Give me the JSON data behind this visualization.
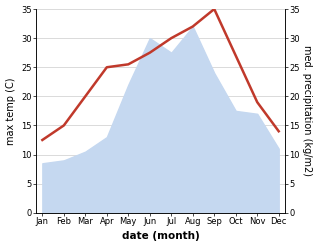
{
  "months": [
    "Jan",
    "Feb",
    "Mar",
    "Apr",
    "May",
    "Jun",
    "Jul",
    "Aug",
    "Sep",
    "Oct",
    "Nov",
    "Dec"
  ],
  "temperature": [
    12.5,
    15.0,
    20.0,
    25.0,
    25.5,
    27.5,
    30.0,
    32.0,
    35.0,
    27.0,
    19.0,
    14.0
  ],
  "precipitation": [
    8.5,
    9.0,
    10.5,
    13.0,
    22.0,
    30.0,
    27.5,
    32.0,
    24.0,
    17.5,
    17.0,
    11.0
  ],
  "temp_color": "#c0392b",
  "precip_color": "#c5d8f0",
  "background_color": "#ffffff",
  "grid_color": "#cccccc",
  "ylim": [
    0,
    35
  ],
  "yticks": [
    0,
    5,
    10,
    15,
    20,
    25,
    30,
    35
  ],
  "xlabel": "date (month)",
  "ylabel_left": "max temp (C)",
  "ylabel_right": "med. precipitation (kg/m2)",
  "axis_fontsize": 7,
  "tick_fontsize": 6,
  "xlabel_fontsize": 7.5,
  "line_width": 1.8
}
